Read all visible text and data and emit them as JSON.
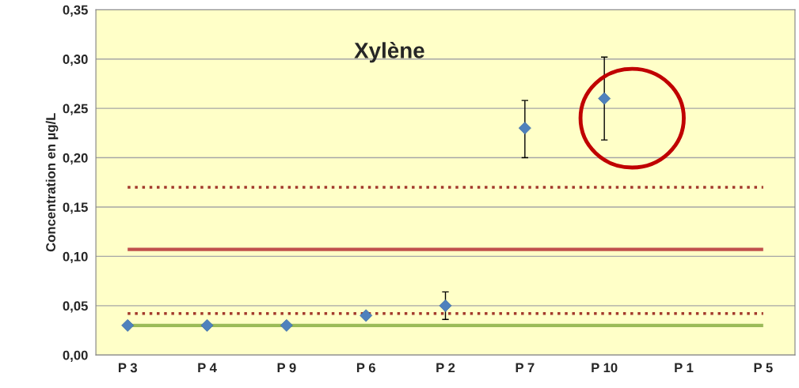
{
  "chart_data": {
    "type": "scatter",
    "title": "Xylène",
    "ylabel": "Concentration en µg/L",
    "categories": [
      "P 3",
      "P 4",
      "P 9",
      "P 6",
      "P 2",
      "P 7",
      "P 10",
      "P 1",
      "P 5"
    ],
    "series": [
      {
        "color": "#4f81bd",
        "values": [
          0.03,
          0.03,
          0.03,
          0.04,
          0.05,
          0.23,
          0.26,
          null,
          null
        ],
        "errors": [
          null,
          null,
          null,
          null,
          [
            0.036,
            0.064
          ],
          [
            0.2,
            0.258
          ],
          [
            0.218,
            0.302
          ],
          null,
          null
        ]
      }
    ],
    "marker": "diamond",
    "ylim": [
      0,
      0.35
    ],
    "yticks": [
      {
        "value": 0,
        "label": "0,00"
      },
      {
        "value": 0.05,
        "label": "0,05"
      },
      {
        "value": 0.1,
        "label": "0,10"
      },
      {
        "value": 0.15,
        "label": "0,15"
      },
      {
        "value": 0.2,
        "label": "0,20"
      },
      {
        "value": 0.25,
        "label": "0,25"
      },
      {
        "value": 0.3,
        "label": "0,30"
      },
      {
        "value": 0.35,
        "label": "0,35"
      }
    ],
    "grid": "y",
    "ref_lines": [
      {
        "axis": "y",
        "value": 0.17,
        "color": "#a33a2c",
        "line_style": "dotted"
      },
      {
        "axis": "y",
        "value": 0.107,
        "color": "#c0504d",
        "line_style": "solid"
      },
      {
        "axis": "y",
        "value": 0.042,
        "color": "#a33a2c",
        "line_style": "dotted"
      },
      {
        "axis": "y",
        "value": 0.03,
        "color": "#9bbb59",
        "line_style": "solid"
      }
    ]
  }
}
